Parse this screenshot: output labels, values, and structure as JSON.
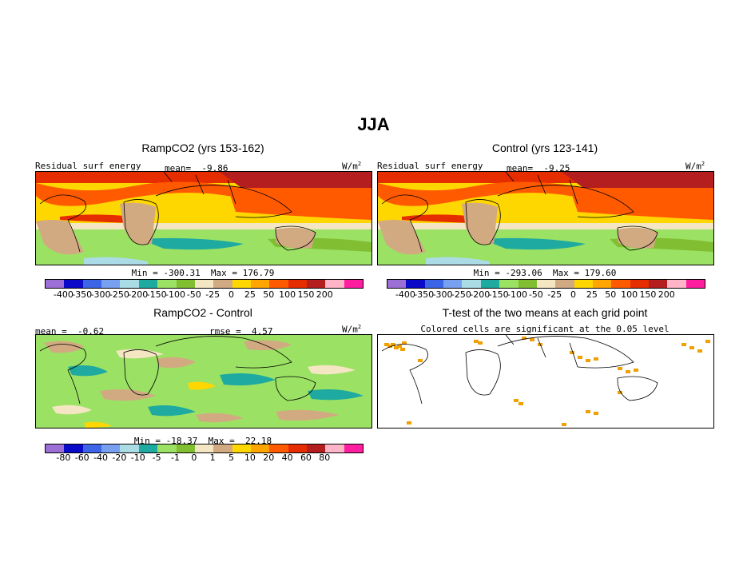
{
  "title": "JJA",
  "panels": {
    "tl": {
      "title": "RampCO2 (yrs 153-162)",
      "left_label": "Residual surf energy",
      "mean_label": "mean=  -9.86",
      "units_base": "W/m",
      "units_exp": "2",
      "minmax": "Min = -300.31  Max = 176.79"
    },
    "tr": {
      "title": "Control (yrs 123-141)",
      "left_label": "Residual surf energy",
      "mean_label": "mean=  -9.25",
      "units_base": "W/m",
      "units_exp": "2",
      "minmax": "Min = -293.06  Max = 179.60"
    },
    "bl": {
      "title": "RampCO2 - Control",
      "mean_label": "mean =  -0.62",
      "rmse_label": "rmse =  4.57",
      "units_base": "W/m",
      "units_exp": "2",
      "minmax": "Min = -18.37  Max =  22.18"
    },
    "br": {
      "title": "T-test of the two means at each grid point",
      "subtitle": "Colored cells are significant at the 0.05 level"
    }
  },
  "colorbar": {
    "colors": [
      "#9b6fd6",
      "#0a0ac8",
      "#3c64e6",
      "#78a0f0",
      "#aadce6",
      "#1eaaa0",
      "#9be164",
      "#82be32",
      "#f5e6c3",
      "#d2aa82",
      "#ffd700",
      "#ffa500",
      "#ff5a00",
      "#e62d00",
      "#b41e1e",
      "#ffb4c8",
      "#ff1ea0"
    ],
    "ticks_top": [
      "-400",
      "-350",
      "-300",
      "-250",
      "-200",
      "-150",
      "-100",
      "-50",
      "-25",
      "0",
      "25",
      "50",
      "100",
      "150",
      "200"
    ],
    "ticks_diff": [
      "-80",
      "-60",
      "-40",
      "-20",
      "-10",
      "-5",
      "-1",
      "0",
      "1",
      "5",
      "10",
      "20",
      "40",
      "60",
      "80"
    ]
  },
  "significance_color": "#f0a000"
}
